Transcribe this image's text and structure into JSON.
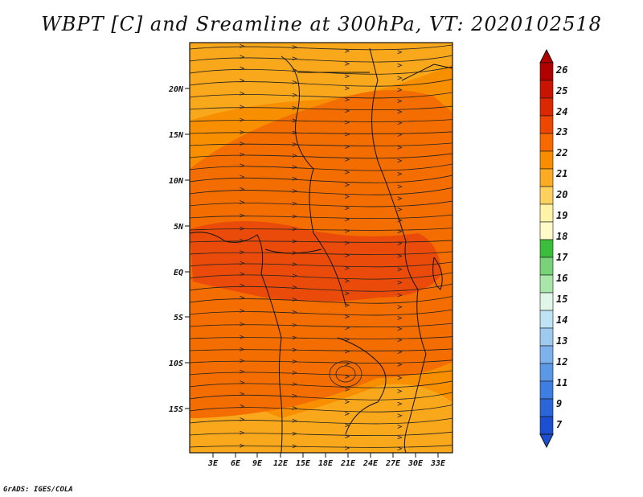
{
  "title": "WBPT [C] and Sreamline at 300hPa, VT: 2020102518",
  "credit": "GrADS: IGES/COLA",
  "map": {
    "lat_labels": [
      "20N",
      "15N",
      "10N",
      "5N",
      "EQ",
      "5S",
      "10S",
      "15S"
    ],
    "lon_labels": [
      "3E",
      "6E",
      "9E",
      "12E",
      "15E",
      "18E",
      "21E",
      "24E",
      "27E",
      "30E",
      "33E"
    ],
    "lat_range": [
      -20,
      24.5
    ],
    "lon_range": [
      0.2,
      34.5
    ],
    "field": "WBPT",
    "units": "C",
    "level": "300hPa"
  },
  "colorbar": {
    "labels": [
      "26",
      "25",
      "24",
      "23",
      "22",
      "21",
      "20",
      "19",
      "18",
      "17",
      "16",
      "15",
      "14",
      "13",
      "12",
      "11",
      "9",
      "7"
    ],
    "colors": [
      "#b00000",
      "#c81400",
      "#dc2800",
      "#ec4600",
      "#f66a00",
      "#f98d00",
      "#fbac24",
      "#fdd05f",
      "#fff3a8",
      "#fffbc8",
      "#3cbe3c",
      "#78d278",
      "#aae6aa",
      "#e0f6e8",
      "#bde3f5",
      "#9fcaf0",
      "#7eb2ec",
      "#5b98e6",
      "#3d7ee0",
      "#2a66d8",
      "#1c4ed0"
    ]
  },
  "colors": {
    "band_20_21": "#f9a81c",
    "band_21_22": "#f88f00",
    "band_22_23": "#f36d00",
    "band_23_24": "#ea4b0a"
  }
}
